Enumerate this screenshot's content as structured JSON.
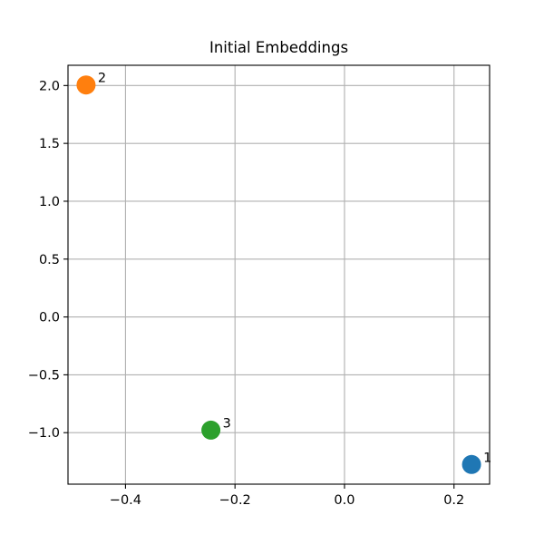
{
  "chart_data": {
    "type": "scatter",
    "title": "Initial Embeddings",
    "xlabel": "",
    "ylabel": "",
    "xlim": [
      -0.505,
      0.265
    ],
    "ylim": [
      -1.445,
      2.175
    ],
    "xticks": [
      -0.4,
      -0.2,
      0.0,
      0.2
    ],
    "yticks": [
      -1.0,
      -0.5,
      0.0,
      0.5,
      1.0,
      1.5,
      2.0
    ],
    "xtick_labels": [
      "−0.4",
      "−0.2",
      "0.0",
      "0.2"
    ],
    "ytick_labels": [
      "−1.0",
      "−0.5",
      "0.0",
      "0.5",
      "1.0",
      "1.5",
      "2.0"
    ],
    "grid": true,
    "points": [
      {
        "label": "1",
        "x": 0.232,
        "y": -1.275,
        "color": "#1f77b4"
      },
      {
        "label": "2",
        "x": -0.472,
        "y": 2.005,
        "color": "#ff7f0e"
      },
      {
        "label": "3",
        "x": -0.244,
        "y": -0.978,
        "color": "#2ca02c"
      }
    ]
  }
}
